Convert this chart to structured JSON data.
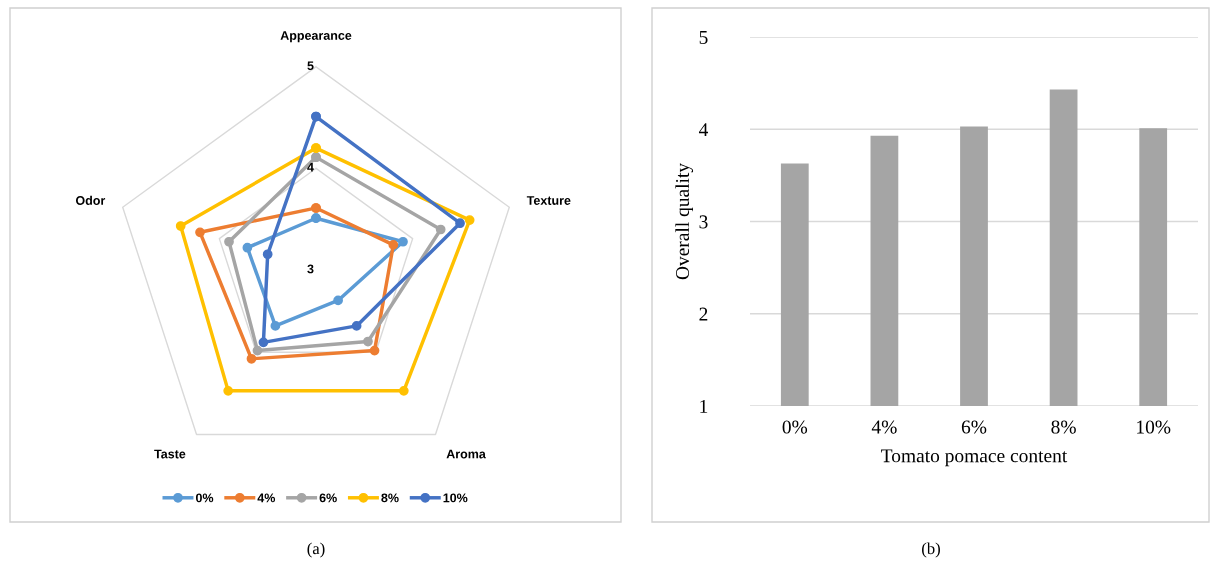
{
  "chart_data": [
    {
      "type": "radar",
      "categories": [
        "Appearance",
        "Texture",
        "Aroma",
        "Taste",
        "Odor"
      ],
      "series": [
        {
          "name": "0%",
          "color": "#5b9bd5",
          "values": [
            3.51,
            3.9,
            3.37,
            3.68,
            3.71
          ]
        },
        {
          "name": "4%",
          "color": "#ed7d31",
          "values": [
            3.61,
            3.8,
            3.98,
            4.08,
            4.2
          ]
        },
        {
          "name": "6%",
          "color": "#a5a5a5",
          "values": [
            4.11,
            4.29,
            3.87,
            3.98,
            3.9
          ]
        },
        {
          "name": "8%",
          "color": "#ffc000",
          "values": [
            4.2,
            4.59,
            4.47,
            4.47,
            4.4
          ]
        },
        {
          "name": "10%",
          "color": "#4472c4",
          "values": [
            4.51,
            4.49,
            3.68,
            3.88,
            3.5
          ]
        }
      ],
      "ylim": [
        3,
        5
      ],
      "yticks": [
        3,
        4,
        5
      ],
      "grid": true,
      "legend": "bottom",
      "marker": "circle",
      "line_style": "solid",
      "annotations": [
        "(a)"
      ]
    },
    {
      "type": "bar",
      "categories": [
        "0%",
        "4%",
        "6%",
        "8%",
        "10%"
      ],
      "values": [
        3.63,
        3.93,
        4.03,
        4.43,
        4.01
      ],
      "color": "#a5a5a5",
      "xlabel": "Tomato pomace content",
      "ylabel": "Overall quality",
      "ylim": [
        1,
        5
      ],
      "yticks": [
        1,
        2,
        3,
        4,
        5
      ],
      "grid": "y",
      "annotations": [
        "(b)"
      ]
    }
  ]
}
